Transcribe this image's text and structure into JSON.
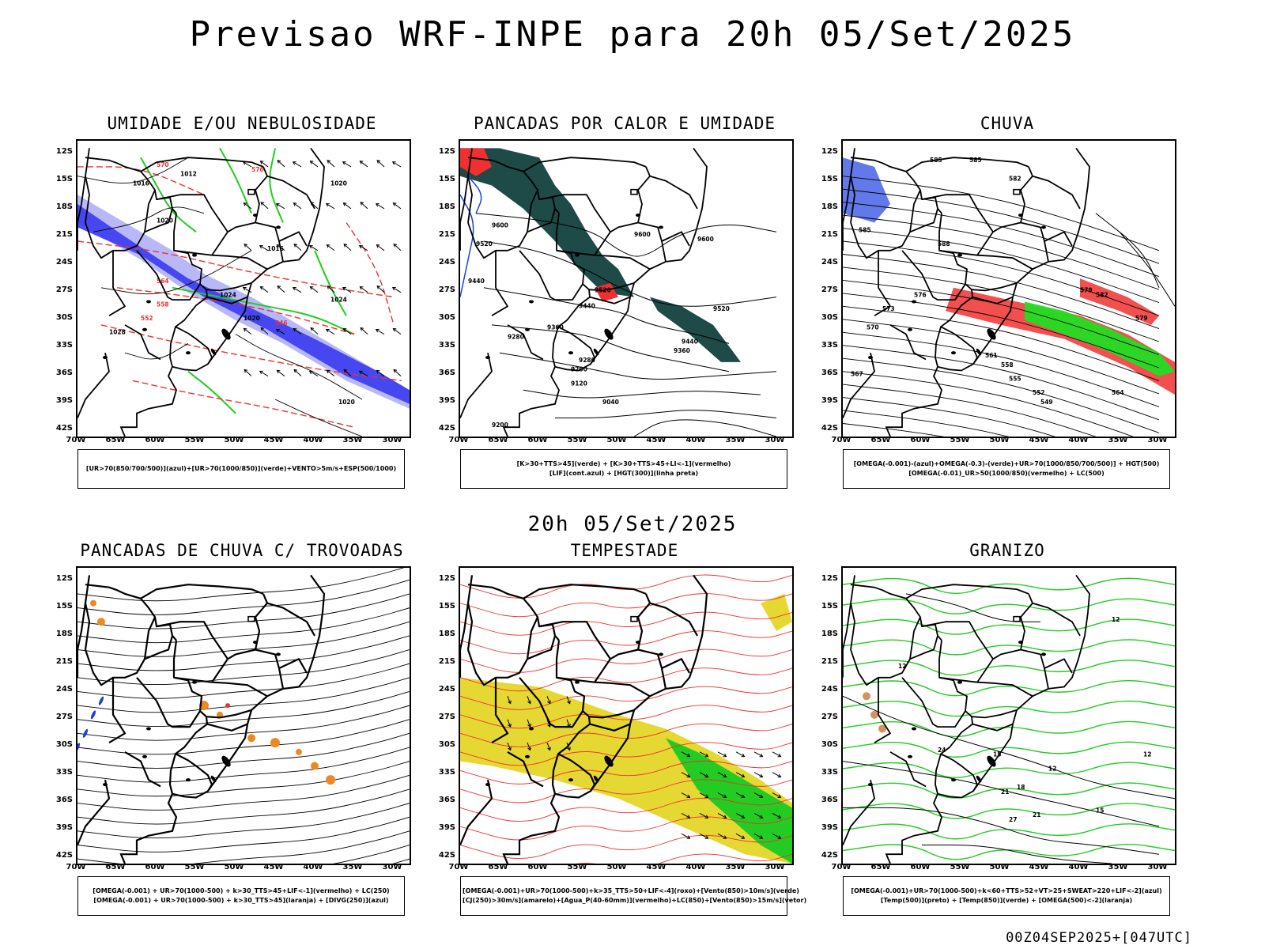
{
  "title": "Previsao WRF-INPE  para 20h 05/Set/2025",
  "subtitle": "20h 05/Set/2025",
  "footer": "00Z04SEP2025+[047UTC]",
  "axes": {
    "lat_labels": [
      "12S",
      "15S",
      "18S",
      "21S",
      "24S",
      "27S",
      "30S",
      "33S",
      "36S",
      "39S",
      "42S"
    ],
    "lon_labels": [
      "70W",
      "65W",
      "60W",
      "55W",
      "50W",
      "45W",
      "40W",
      "35W",
      "30W"
    ]
  },
  "panels": [
    {
      "id": "umidade",
      "title": "UMIDADE E/OU NEBULOSIDADE",
      "legend": [
        "[UR>70(850/700/500)](azul)+[UR>70(1000/850)](verde)+VENTO>5m/s+ESP(500/1000)"
      ],
      "labels": [
        "1016",
        "1020",
        "1020",
        "1024",
        "1028",
        "1024",
        "1020",
        "1012",
        "1016",
        "570",
        "576",
        "564",
        "558",
        "552",
        "546",
        "1020"
      ],
      "colors": {
        "blue": "#3b3bf0",
        "lightblue": "#b0b0f8",
        "green": "#22cc22",
        "red": "#f03030"
      }
    },
    {
      "id": "pancadas-calor",
      "title": "PANCADAS POR CALOR E UMIDADE",
      "legend": [
        "[K>30+TTS>45](verde) + [K>30+TTS>45+LI<-1](vermelho)",
        "[LIF](cont.azul) + [HGT(300)](linha preta)"
      ],
      "labels": [
        "9600",
        "9520",
        "9440",
        "9600",
        "9600",
        "9520",
        "9520",
        "9440",
        "9360",
        "9280",
        "9440",
        "9360",
        "9280",
        "9200",
        "9120",
        "9040",
        "9200"
      ],
      "colors": {
        "darkgreen": "#1e4a48",
        "red": "#f03030",
        "blue": "#2040e0"
      }
    },
    {
      "id": "chuva",
      "title": "CHUVA",
      "legend": [
        "[OMEGA(-0.001)-(azul)+OMEGA(-0.3)-(verde)+UR>70(1000/850/700/500)] + HGT(500)",
        "[OMEGA(-0.01)_UR>50(1000/850)(vermelho) + LC(500)"
      ],
      "labels": [
        "585",
        "585",
        "582",
        "585",
        "588",
        "579",
        "576",
        "573",
        "570",
        "567",
        "564",
        "582",
        "579",
        "561",
        "558",
        "555",
        "552",
        "549"
      ],
      "colors": {
        "blue": "#2040e0",
        "green": "#22dd22",
        "red": "#f03030"
      }
    },
    {
      "id": "trovoadas",
      "title": "PANCADAS DE CHUVA C/ TROVOADAS",
      "legend": [
        "[OMEGA(-0.001) + UR>70(1000-500) + k>30_TTS>45+LIF<-1](vermelho) + LC(250)",
        "[OMEGA(-0.001) + UR>70(1000-500) + k>30_TTS>45](laranja) + [DIVG(250)](azul)"
      ],
      "labels": [],
      "colors": {
        "orange": "#ee8822",
        "red": "#f03030",
        "blue": "#2040e0"
      }
    },
    {
      "id": "tempestade",
      "title": "TEMPESTADE",
      "legend": [
        "[OMEGA(-0.001)+UR>70(1000-500)+k>35_TTS>50+LIF<-4](roxo)+[Vento(850)>10m/s](verde)",
        "[CJ(250)>30m/s](amarelo)+[Agua_P(40-60mm)](vermelho)+LC(850)+[Vento(850)>15m/s](vetor)"
      ],
      "labels": [],
      "colors": {
        "yellow": "#e6d832",
        "green": "#22cc22",
        "red": "#f03030"
      }
    },
    {
      "id": "granizo",
      "title": "GRANIZO",
      "legend": [
        "[OMEGA(-0.001)+UR>70(1000-500)+k<60+TTS>52+VT>25+SWEAT>220+LIF<-2](azul)",
        "[Temp(500)](preto) + [Temp(850)](verde) + [OMEGA(500)<-2](laranja)"
      ],
      "labels": [
        "12",
        "12",
        "15",
        "12",
        "18",
        "21",
        "27",
        "12",
        "15",
        "21",
        "24"
      ],
      "colors": {
        "green": "#22cc22",
        "orange": "#cc7733"
      }
    }
  ]
}
